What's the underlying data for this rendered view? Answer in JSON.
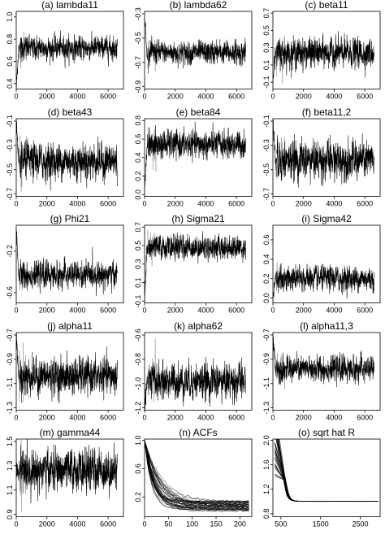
{
  "chart_data": [
    {
      "id": "a",
      "type": "line",
      "title": "(a) lambda11",
      "xlim": [
        0,
        7000
      ],
      "ylim": [
        0.35,
        1.05
      ],
      "xticks": [
        0,
        2000,
        4000,
        6000
      ],
      "xtick_labels": [
        "0",
        "2000",
        "4000",
        "6000"
      ],
      "yticks": [
        0.4,
        0.6,
        0.8,
        1.0
      ],
      "ytick_labels": [
        "0.4",
        "0.6",
        "0.8",
        "1.0"
      ],
      "series": [
        {
          "center": 0.72,
          "spread": 0.05,
          "n_iter": 6600,
          "start": 0.35
        }
      ]
    },
    {
      "id": "b",
      "type": "line",
      "title": "(b) lambda62",
      "xlim": [
        0,
        7000
      ],
      "ylim": [
        -0.92,
        -0.28
      ],
      "xticks": [
        0,
        2000,
        4000,
        6000
      ],
      "xtick_labels": [
        "0",
        "2000",
        "4000",
        "6000"
      ],
      "yticks": [
        -0.9,
        -0.7,
        -0.5,
        -0.3
      ],
      "ytick_labels": [
        "-0.9",
        "-0.7",
        "-0.5",
        "-0.3"
      ],
      "series": [
        {
          "center": -0.62,
          "spread": 0.045,
          "n_iter": 6600,
          "start": -0.3
        }
      ]
    },
    {
      "id": "c",
      "type": "line",
      "title": "(c) beta11",
      "xlim": [
        0,
        7000
      ],
      "ylim": [
        -0.18,
        0.72
      ],
      "xticks": [
        0,
        2000,
        4000,
        6000
      ],
      "xtick_labels": [
        "0",
        "2000",
        "4000",
        "6000"
      ],
      "yticks": [
        -0.1,
        0.1,
        0.3,
        0.5,
        0.7
      ],
      "ytick_labels": [
        "-0.1",
        "0.1",
        "0.3",
        "0.5",
        "0.7"
      ],
      "series": [
        {
          "center": 0.24,
          "spread": 0.08,
          "n_iter": 6600,
          "start": -0.1
        }
      ]
    },
    {
      "id": "d",
      "type": "line",
      "title": "(d) beta43",
      "xlim": [
        0,
        7000
      ],
      "ylim": [
        -0.72,
        -0.08
      ],
      "xticks": [
        0,
        2000,
        4000,
        6000
      ],
      "xtick_labels": [
        "0",
        "2000",
        "4000",
        "6000"
      ],
      "yticks": [
        -0.7,
        -0.5,
        -0.3,
        -0.1
      ],
      "ytick_labels": [
        "-0.7",
        "-0.5",
        "-0.3",
        "-0.1"
      ],
      "series": [
        {
          "center": -0.43,
          "spread": 0.07,
          "n_iter": 6600,
          "start": -0.1
        }
      ]
    },
    {
      "id": "e",
      "type": "line",
      "title": "(e) beta84",
      "xlim": [
        0,
        7000
      ],
      "ylim": [
        -0.02,
        0.82
      ],
      "xticks": [
        0,
        2000,
        4000,
        6000
      ],
      "xtick_labels": [
        "0",
        "2000",
        "4000",
        "6000"
      ],
      "yticks": [
        0.0,
        0.2,
        0.4,
        0.6,
        0.8
      ],
      "ytick_labels": [
        "0.0",
        "0.2",
        "0.4",
        "0.6",
        "0.8"
      ],
      "series": [
        {
          "center": 0.54,
          "spread": 0.07,
          "n_iter": 6600,
          "start": 0.0
        }
      ]
    },
    {
      "id": "f",
      "type": "line",
      "title": "(f) beta11,2",
      "xlim": [
        0,
        7000
      ],
      "ylim": [
        -0.72,
        -0.08
      ],
      "xticks": [
        0,
        2000,
        4000,
        6000
      ],
      "xtick_labels": [
        "0",
        "2000",
        "4000",
        "6000"
      ],
      "yticks": [
        -0.7,
        -0.5,
        -0.3,
        -0.1
      ],
      "ytick_labels": [
        "-0.7",
        "-0.5",
        "-0.3",
        "-0.1"
      ],
      "series": [
        {
          "center": -0.42,
          "spread": 0.075,
          "n_iter": 6600,
          "start": -0.1
        }
      ]
    },
    {
      "id": "g",
      "type": "line",
      "title": "(g) Phi21",
      "xlim": [
        0,
        7000
      ],
      "ylim": [
        -0.7,
        0.05
      ],
      "xticks": [
        0,
        2000,
        4000,
        6000
      ],
      "xtick_labels": [
        "0",
        "2000",
        "4000",
        "6000"
      ],
      "yticks": [
        -0.6,
        -0.2
      ],
      "ytick_labels": [
        "-0.6",
        "-0.2"
      ],
      "series": [
        {
          "center": -0.43,
          "spread": 0.06,
          "n_iter": 6600,
          "start": 0.0
        }
      ]
    },
    {
      "id": "h",
      "type": "line",
      "title": "(h) Sigma21",
      "xlim": [
        0,
        7000
      ],
      "ylim": [
        -0.12,
        0.72
      ],
      "xticks": [
        0,
        2000,
        4000,
        6000
      ],
      "xtick_labels": [
        "0",
        "2000",
        "4000",
        "6000"
      ],
      "yticks": [
        -0.1,
        0.1,
        0.3,
        0.5,
        0.7
      ],
      "ytick_labels": [
        "-0.1",
        "0.1",
        "0.3",
        "0.5",
        "0.7"
      ],
      "series": [
        {
          "center": 0.48,
          "spread": 0.06,
          "n_iter": 6600,
          "start": -0.1
        }
      ]
    },
    {
      "id": "i",
      "type": "line",
      "title": "(i) Sigma42",
      "xlim": [
        0,
        7000
      ],
      "ylim": [
        -0.05,
        0.75
      ],
      "xticks": [
        0,
        2000,
        4000,
        6000
      ],
      "xtick_labels": [
        "0",
        "2000",
        "4000",
        "6000"
      ],
      "yticks": [
        0.0,
        0.2,
        0.4,
        0.6
      ],
      "ytick_labels": [
        "0.0",
        "0.2",
        "0.4",
        "0.6"
      ],
      "series": [
        {
          "center": 0.2,
          "spread": 0.06,
          "n_iter": 6600,
          "start": 0.0
        }
      ]
    },
    {
      "id": "j",
      "type": "line",
      "title": "(j) alpha11",
      "xlim": [
        0,
        7000
      ],
      "ylim": [
        -1.32,
        -0.68
      ],
      "xticks": [
        0,
        2000,
        4000,
        6000
      ],
      "xtick_labels": [
        "0",
        "2000",
        "4000",
        "6000"
      ],
      "yticks": [
        -1.3,
        -1.1,
        -0.9,
        -0.7
      ],
      "ytick_labels": [
        "-1.3",
        "-1.1",
        "-0.9",
        "-0.7"
      ],
      "series": [
        {
          "center": -1.04,
          "spread": 0.07,
          "n_iter": 6600,
          "start": -0.7
        }
      ]
    },
    {
      "id": "k",
      "type": "line",
      "title": "(k) alpha62",
      "xlim": [
        0,
        7000
      ],
      "ylim": [
        -1.22,
        -0.58
      ],
      "xticks": [
        0,
        2000,
        4000,
        6000
      ],
      "xtick_labels": [
        "0",
        "2000",
        "4000",
        "6000"
      ],
      "yticks": [
        -1.2,
        -1.0,
        -0.8,
        -0.6
      ],
      "ytick_labels": [
        "-1.2",
        "-1.0",
        "-0.8",
        "-0.6"
      ],
      "series": [
        {
          "center": -0.98,
          "spread": 0.07,
          "n_iter": 6600,
          "start": -1.2
        }
      ]
    },
    {
      "id": "l",
      "type": "line",
      "title": "(l) alpha11,3",
      "xlim": [
        0,
        7000
      ],
      "ylim": [
        -1.32,
        -0.68
      ],
      "xticks": [
        0,
        2000,
        4000,
        6000
      ],
      "xtick_labels": [
        "0",
        "2000",
        "4000",
        "6000"
      ],
      "yticks": [
        -1.3,
        -1.1,
        -0.9,
        -0.7
      ],
      "ytick_labels": [
        "-1.3",
        "-1.1",
        "-0.9",
        "-0.7"
      ],
      "series": [
        {
          "center": -0.98,
          "spread": 0.05,
          "n_iter": 6600,
          "start": -0.7
        }
      ]
    },
    {
      "id": "m",
      "type": "line",
      "title": "(m) gamma44",
      "xlim": [
        0,
        7000
      ],
      "ylim": [
        0.88,
        1.52
      ],
      "xticks": [
        0,
        2000,
        4000,
        6000
      ],
      "xtick_labels": [
        "0",
        "2000",
        "4000",
        "6000"
      ],
      "yticks": [
        0.9,
        1.1,
        1.3,
        1.5
      ],
      "ytick_labels": [
        "0.9",
        "1.1",
        "1.3",
        "1.5"
      ],
      "series": [
        {
          "center": 1.26,
          "spread": 0.08,
          "n_iter": 6600,
          "start": 1.25
        }
      ]
    },
    {
      "id": "n",
      "type": "line",
      "title": "(n) ACFs",
      "xlim": [
        0,
        225
      ],
      "ylim": [
        -0.08,
        1.02
      ],
      "xticks": [
        0,
        50,
        100,
        150,
        200
      ],
      "xtick_labels": [
        "0",
        "50",
        "100",
        "150",
        "200"
      ],
      "yticks": [
        0.2,
        0.6,
        1.0
      ],
      "ytick_labels": [
        "0.2",
        "0.6",
        "1.0"
      ],
      "acf": {
        "n_curves": 40,
        "lag_max": 220,
        "tail_min": 0.0,
        "tail_max": 0.14,
        "decay_min": 0.025,
        "decay_max": 0.07
      }
    },
    {
      "id": "o",
      "type": "line",
      "title": "(o) sqrt hat R",
      "xlim": [
        300,
        3000
      ],
      "ylim": [
        0.75,
        2.02
      ],
      "xticks": [
        500,
        1500,
        2500
      ],
      "xtick_labels": [
        "500",
        "1500",
        "2500"
      ],
      "yticks": [
        0.8,
        1.2,
        1.6,
        2.0
      ],
      "ytick_labels": [
        "0.8",
        "1.2",
        "1.6",
        "2.0"
      ],
      "rhat": {
        "n_curves": 45,
        "x_start": 350,
        "x_drop": 600,
        "x_end": 2950,
        "final": 1.0
      }
    }
  ]
}
